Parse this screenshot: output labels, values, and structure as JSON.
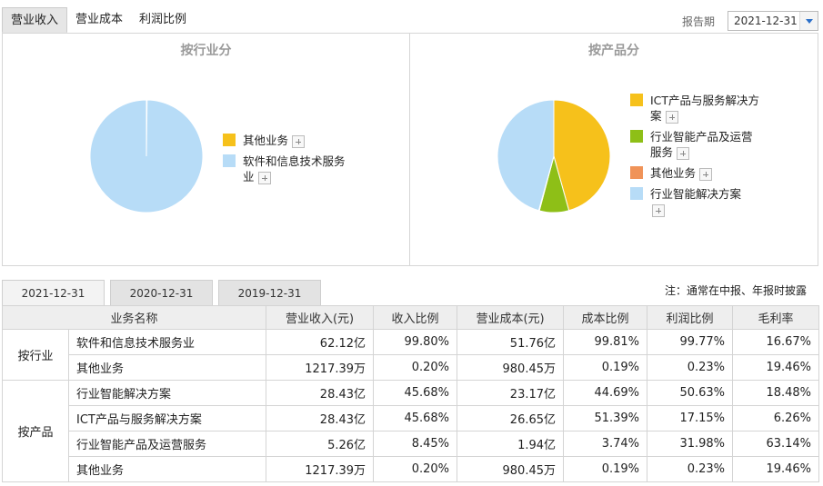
{
  "top_tabs": [
    "营业收入",
    "营业成本",
    "利润比例"
  ],
  "period": {
    "label": "报告期",
    "value": "2021-12-31"
  },
  "panels": {
    "industry": {
      "title": "按行业分",
      "legend": [
        {
          "label": "其他业务",
          "color": "#f6c11b"
        },
        {
          "label": "软件和信息技术服务业",
          "color": "#b7dcf7"
        }
      ],
      "shares": [
        0.2,
        99.8
      ]
    },
    "product": {
      "title": "按产品分",
      "legend": [
        {
          "label": "ICT产品与服务解决方案",
          "color": "#f6c11b"
        },
        {
          "label": "行业智能产品及运营服务",
          "color": "#8ebf17"
        },
        {
          "label": "其他业务",
          "color": "#f09358"
        },
        {
          "label": "行业智能解决方案",
          "color": "#b7dcf7"
        }
      ],
      "shares": [
        45.68,
        8.45,
        0.2,
        45.68
      ]
    }
  },
  "year_tabs": [
    "2021-12-31",
    "2020-12-31",
    "2019-12-31"
  ],
  "note": "注：通常在中报、年报时披露",
  "table": {
    "headers": [
      "业务名称",
      "营业收入(元)",
      "收入比例",
      "营业成本(元)",
      "成本比例",
      "利润比例",
      "毛利率"
    ],
    "groups": [
      {
        "label": "按行业",
        "rows": [
          [
            "软件和信息技术服务业",
            "62.12亿",
            "99.80%",
            "51.76亿",
            "99.81%",
            "99.77%",
            "16.67%"
          ],
          [
            "其他业务",
            "1217.39万",
            "0.20%",
            "980.45万",
            "0.19%",
            "0.23%",
            "19.46%"
          ]
        ]
      },
      {
        "label": "按产品",
        "rows": [
          [
            "行业智能解决方案",
            "28.43亿",
            "45.68%",
            "23.17亿",
            "44.69%",
            "50.63%",
            "18.48%"
          ],
          [
            "ICT产品与服务解决方案",
            "28.43亿",
            "45.68%",
            "26.65亿",
            "51.39%",
            "17.15%",
            "6.26%"
          ],
          [
            "行业智能产品及运营服务",
            "5.26亿",
            "8.45%",
            "1.94亿",
            "3.74%",
            "31.98%",
            "63.14%"
          ],
          [
            "其他业务",
            "1217.39万",
            "0.20%",
            "980.45万",
            "0.19%",
            "0.23%",
            "19.46%"
          ]
        ]
      }
    ]
  }
}
